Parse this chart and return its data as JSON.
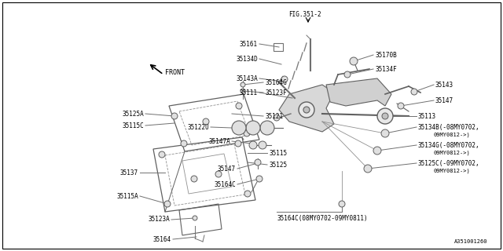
{
  "bg_color": "#ffffff",
  "fig_ref": "FIG.351-2",
  "diagram_id": "A351001260",
  "front_label": "FRONT",
  "lc": "#808080",
  "fs": 5.5,
  "fs_small": 5.0
}
